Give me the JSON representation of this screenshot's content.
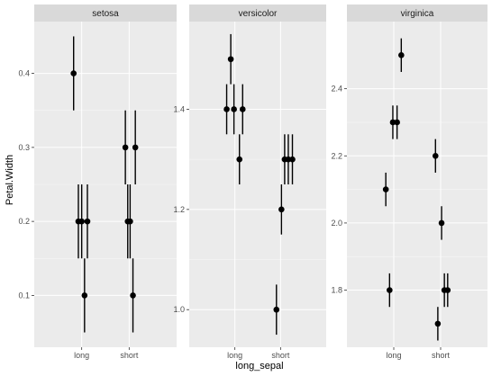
{
  "chart_data": {
    "type": "scatter",
    "title": "",
    "xlabel": "long_sepal",
    "ylabel": "Petal.Width",
    "x_categories": [
      "long",
      "short"
    ],
    "grid": true,
    "legend": "none",
    "colors": {
      "panel_bg": "#ebebeb",
      "strip_bg": "#d9d9d9",
      "grid_major": "#ffffff",
      "point": "#000000"
    },
    "panels": [
      {
        "strip": "setosa",
        "ylim": [
          0.03,
          0.47
        ],
        "yticks": [
          0.1,
          0.2,
          0.3,
          0.4
        ],
        "ytick_labels": [
          "0.1",
          "0.2",
          "0.3",
          "0.4"
        ],
        "points": [
          {
            "x": "long",
            "jitter": -0.17,
            "y": 0.4,
            "ymin": 0.35,
            "ymax": 0.45
          },
          {
            "x": "long",
            "jitter": -0.07,
            "y": 0.2,
            "ymin": 0.15,
            "ymax": 0.25
          },
          {
            "x": "long",
            "jitter": 0.0,
            "y": 0.2,
            "ymin": 0.15,
            "ymax": 0.25
          },
          {
            "x": "long",
            "jitter": 0.06,
            "y": 0.1,
            "ymin": 0.05,
            "ymax": 0.15
          },
          {
            "x": "long",
            "jitter": 0.12,
            "y": 0.2,
            "ymin": 0.15,
            "ymax": 0.25
          },
          {
            "x": "short",
            "jitter": -0.08,
            "y": 0.3,
            "ymin": 0.25,
            "ymax": 0.35
          },
          {
            "x": "short",
            "jitter": -0.03,
            "y": 0.2,
            "ymin": 0.15,
            "ymax": 0.25
          },
          {
            "x": "short",
            "jitter": 0.02,
            "y": 0.2,
            "ymin": 0.15,
            "ymax": 0.25
          },
          {
            "x": "short",
            "jitter": 0.08,
            "y": 0.1,
            "ymin": 0.05,
            "ymax": 0.15
          },
          {
            "x": "short",
            "jitter": 0.13,
            "y": 0.3,
            "ymin": 0.25,
            "ymax": 0.35
          }
        ]
      },
      {
        "strip": "versicolor",
        "ylim": [
          0.925,
          1.575
        ],
        "yticks": [
          1.0,
          1.2,
          1.4
        ],
        "ytick_labels": [
          "1.0",
          "1.2",
          "1.4"
        ],
        "points": [
          {
            "x": "long",
            "jitter": -0.18,
            "y": 1.4,
            "ymin": 1.35,
            "ymax": 1.45
          },
          {
            "x": "long",
            "jitter": -0.09,
            "y": 1.5,
            "ymin": 1.45,
            "ymax": 1.55
          },
          {
            "x": "long",
            "jitter": -0.02,
            "y": 1.4,
            "ymin": 1.35,
            "ymax": 1.45
          },
          {
            "x": "long",
            "jitter": 0.1,
            "y": 1.3,
            "ymin": 1.25,
            "ymax": 1.35
          },
          {
            "x": "long",
            "jitter": 0.17,
            "y": 1.4,
            "ymin": 1.35,
            "ymax": 1.45
          },
          {
            "x": "short",
            "jitter": -0.09,
            "y": 1.0,
            "ymin": 0.95,
            "ymax": 1.05
          },
          {
            "x": "short",
            "jitter": 0.02,
            "y": 1.2,
            "ymin": 1.15,
            "ymax": 1.25
          },
          {
            "x": "short",
            "jitter": 0.09,
            "y": 1.3,
            "ymin": 1.25,
            "ymax": 1.35
          },
          {
            "x": "short",
            "jitter": 0.17,
            "y": 1.3,
            "ymin": 1.25,
            "ymax": 1.35
          },
          {
            "x": "short",
            "jitter": 0.26,
            "y": 1.3,
            "ymin": 1.25,
            "ymax": 1.35
          }
        ]
      },
      {
        "strip": "virginica",
        "ylim": [
          1.63,
          2.6
        ],
        "yticks": [
          1.8,
          2.0,
          2.2,
          2.4
        ],
        "ytick_labels": [
          "1.8",
          "2.0",
          "2.2",
          "2.4"
        ],
        "points": [
          {
            "x": "long",
            "jitter": -0.17,
            "y": 2.1,
            "ymin": 2.05,
            "ymax": 2.15
          },
          {
            "x": "long",
            "jitter": -0.09,
            "y": 1.8,
            "ymin": 1.75,
            "ymax": 1.85
          },
          {
            "x": "long",
            "jitter": -0.02,
            "y": 2.3,
            "ymin": 2.25,
            "ymax": 2.35
          },
          {
            "x": "long",
            "jitter": 0.07,
            "y": 2.3,
            "ymin": 2.25,
            "ymax": 2.35
          },
          {
            "x": "long",
            "jitter": 0.16,
            "y": 2.5,
            "ymin": 2.45,
            "ymax": 2.55
          },
          {
            "x": "short",
            "jitter": -0.11,
            "y": 2.2,
            "ymin": 2.15,
            "ymax": 2.25
          },
          {
            "x": "short",
            "jitter": -0.06,
            "y": 1.7,
            "ymin": 1.65,
            "ymax": 1.75
          },
          {
            "x": "short",
            "jitter": 0.02,
            "y": 2.0,
            "ymin": 1.95,
            "ymax": 2.05
          },
          {
            "x": "short",
            "jitter": 0.08,
            "y": 1.8,
            "ymin": 1.75,
            "ymax": 1.85
          },
          {
            "x": "short",
            "jitter": 0.15,
            "y": 1.8,
            "ymin": 1.75,
            "ymax": 1.85
          }
        ]
      }
    ]
  }
}
